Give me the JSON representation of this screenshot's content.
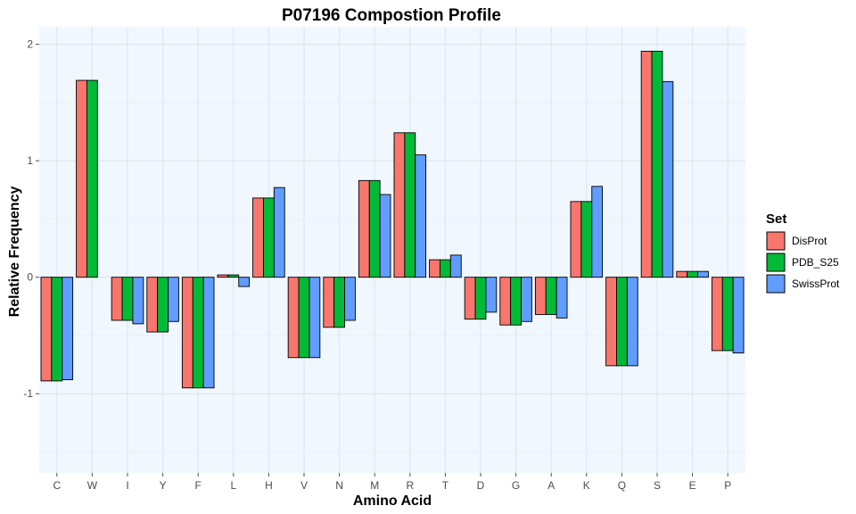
{
  "chart_data": {
    "type": "bar",
    "title": "P07196 Compostion Profile",
    "xlabel": "Amino Acid",
    "ylabel": "Relative Frequency",
    "ylim": [
      -1.68,
      2.15
    ],
    "yticks": [
      -1,
      0,
      1,
      2
    ],
    "categories": [
      "C",
      "W",
      "I",
      "Y",
      "F",
      "L",
      "H",
      "V",
      "N",
      "M",
      "R",
      "T",
      "D",
      "G",
      "A",
      "K",
      "Q",
      "S",
      "E",
      "P"
    ],
    "legend": {
      "title": "Set",
      "position": "right"
    },
    "grid": true,
    "series": [
      {
        "name": "DisProt",
        "color": "#F8766D",
        "values": [
          -0.89,
          1.69,
          -0.37,
          -0.47,
          -0.95,
          0.02,
          0.68,
          -0.69,
          -0.43,
          0.83,
          1.24,
          0.15,
          -0.36,
          -0.41,
          -0.32,
          0.65,
          -0.76,
          1.94,
          0.05,
          -0.63
        ]
      },
      {
        "name": "PDB_S25",
        "color": "#00BA38",
        "values": [
          -0.89,
          1.69,
          -0.37,
          -0.47,
          -0.95,
          0.02,
          0.68,
          -0.69,
          -0.43,
          0.83,
          1.24,
          0.15,
          -0.36,
          -0.41,
          -0.32,
          0.65,
          -0.76,
          1.94,
          0.05,
          -0.63
        ]
      },
      {
        "name": "SwissProt",
        "color": "#619CFF",
        "values": [
          -0.88,
          null,
          -0.4,
          -0.38,
          -0.95,
          -0.08,
          0.77,
          -0.69,
          -0.37,
          0.71,
          1.05,
          0.19,
          -0.3,
          -0.38,
          -0.35,
          0.78,
          -0.76,
          1.68,
          0.05,
          -0.65
        ]
      }
    ]
  }
}
